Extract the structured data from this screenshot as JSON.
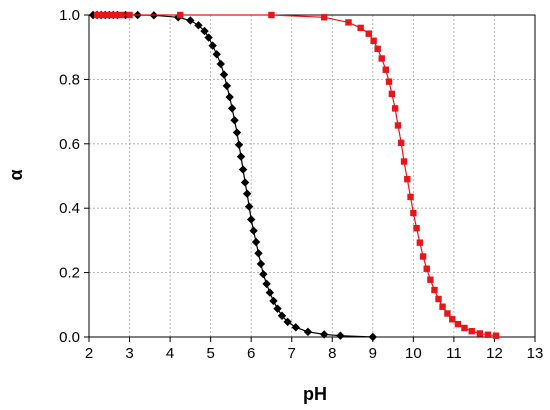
{
  "chart_data": {
    "type": "scatter",
    "xlabel": "pH",
    "ylabel": "α",
    "xlim": [
      2,
      13
    ],
    "ylim": [
      0,
      1.0
    ],
    "x_ticks": [
      "2",
      "3",
      "4",
      "5",
      "6",
      "7",
      "8",
      "9",
      "10",
      "11",
      "12",
      "13"
    ],
    "y_ticks": [
      "0.0",
      "0.2",
      "0.4",
      "0.6",
      "0.8",
      "1.0"
    ],
    "grid": true,
    "series": [
      {
        "marker": "diamond",
        "color": "#000000",
        "points": [
          [
            2.1,
            1.0
          ],
          [
            2.2,
            1.0
          ],
          [
            2.3,
            1.0
          ],
          [
            2.4,
            1.0
          ],
          [
            2.5,
            1.0
          ],
          [
            2.6,
            1.0
          ],
          [
            2.7,
            1.0
          ],
          [
            2.9,
            1.0
          ],
          [
            3.2,
            1.0
          ],
          [
            3.6,
            0.999
          ],
          [
            4.2,
            0.993
          ],
          [
            4.5,
            0.983
          ],
          [
            4.7,
            0.968
          ],
          [
            4.85,
            0.95
          ],
          [
            4.95,
            0.93
          ],
          [
            5.05,
            0.905
          ],
          [
            5.15,
            0.878
          ],
          [
            5.25,
            0.848
          ],
          [
            5.33,
            0.815
          ],
          [
            5.4,
            0.78
          ],
          [
            5.47,
            0.745
          ],
          [
            5.53,
            0.71
          ],
          [
            5.59,
            0.673
          ],
          [
            5.65,
            0.635
          ],
          [
            5.7,
            0.597
          ],
          [
            5.75,
            0.56
          ],
          [
            5.8,
            0.52
          ],
          [
            5.85,
            0.48
          ],
          [
            5.9,
            0.445
          ],
          [
            5.95,
            0.405
          ],
          [
            6.0,
            0.365
          ],
          [
            6.06,
            0.33
          ],
          [
            6.12,
            0.295
          ],
          [
            6.18,
            0.26
          ],
          [
            6.24,
            0.227
          ],
          [
            6.3,
            0.195
          ],
          [
            6.38,
            0.165
          ],
          [
            6.46,
            0.138
          ],
          [
            6.55,
            0.112
          ],
          [
            6.65,
            0.088
          ],
          [
            6.76,
            0.066
          ],
          [
            6.9,
            0.047
          ],
          [
            7.1,
            0.03
          ],
          [
            7.4,
            0.016
          ],
          [
            7.8,
            0.008
          ],
          [
            8.2,
            0.004
          ],
          [
            9.0,
            0.0
          ]
        ]
      },
      {
        "marker": "square",
        "color": "#e8151b",
        "points": [
          [
            2.2,
            1.0
          ],
          [
            2.35,
            1.0
          ],
          [
            2.5,
            1.0
          ],
          [
            2.65,
            1.0
          ],
          [
            2.8,
            1.0
          ],
          [
            3.0,
            1.0
          ],
          [
            4.25,
            1.0
          ],
          [
            6.5,
            1.0
          ],
          [
            7.8,
            0.993
          ],
          [
            8.4,
            0.977
          ],
          [
            8.7,
            0.96
          ],
          [
            8.9,
            0.942
          ],
          [
            9.02,
            0.92
          ],
          [
            9.12,
            0.895
          ],
          [
            9.22,
            0.865
          ],
          [
            9.32,
            0.83
          ],
          [
            9.4,
            0.793
          ],
          [
            9.47,
            0.755
          ],
          [
            9.55,
            0.71
          ],
          [
            9.62,
            0.657
          ],
          [
            9.7,
            0.603
          ],
          [
            9.77,
            0.545
          ],
          [
            9.85,
            0.49
          ],
          [
            9.93,
            0.435
          ],
          [
            10.0,
            0.385
          ],
          [
            10.08,
            0.338
          ],
          [
            10.16,
            0.293
          ],
          [
            10.24,
            0.25
          ],
          [
            10.33,
            0.212
          ],
          [
            10.42,
            0.178
          ],
          [
            10.52,
            0.146
          ],
          [
            10.62,
            0.118
          ],
          [
            10.72,
            0.094
          ],
          [
            10.84,
            0.073
          ],
          [
            10.96,
            0.055
          ],
          [
            11.1,
            0.04
          ],
          [
            11.26,
            0.028
          ],
          [
            11.44,
            0.018
          ],
          [
            11.64,
            0.011
          ],
          [
            11.84,
            0.007
          ],
          [
            12.04,
            0.004
          ]
        ]
      }
    ]
  }
}
